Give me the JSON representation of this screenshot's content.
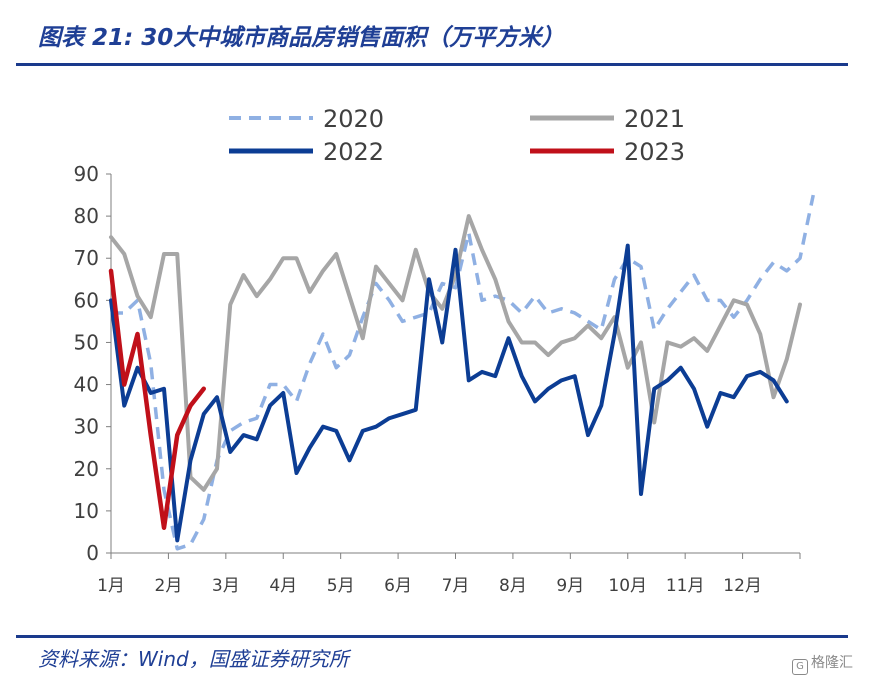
{
  "figure": {
    "title": "图表 21:  30大中城市商品房销售面积（万平方米）",
    "source": "资料来源：Wind，国盛证券研究所",
    "watermark": "格隆汇"
  },
  "colors": {
    "2020": "#8fb0e3",
    "2021": "#a6a6a6",
    "2022": "#0c3d94",
    "2023": "#c0101a",
    "title": "#1f3f95",
    "axis": "#7f7f7f"
  },
  "chart_data": {
    "type": "line",
    "title": "30大中城市商品房销售面积（万平方米）",
    "xlabel": "",
    "ylabel": "",
    "ylim": [
      0,
      90
    ],
    "yticks": [
      0,
      10,
      20,
      30,
      40,
      50,
      60,
      70,
      80,
      90
    ],
    "x_tick_labels": [
      "1月",
      "2月",
      "3月",
      "4月",
      "5月",
      "6月",
      "7月",
      "8月",
      "9月",
      "10月",
      "11月",
      "12月"
    ],
    "x_unit": "week of year",
    "xlim": [
      1,
      53
    ],
    "grid": false,
    "legend": "top",
    "series": [
      {
        "name": "2020",
        "style": "dashed",
        "values": [
          57,
          57,
          60,
          45,
          15,
          1,
          2,
          8,
          22,
          29,
          31,
          32,
          40,
          40,
          36,
          45,
          52,
          44,
          47,
          56,
          64,
          60,
          55,
          56,
          57,
          64,
          63,
          76,
          60,
          61,
          60,
          57,
          61,
          57,
          58,
          57,
          55,
          53,
          65,
          70,
          68,
          53,
          58,
          62,
          66,
          60,
          60,
          56,
          60,
          65,
          69,
          67,
          70,
          85
        ]
      },
      {
        "name": "2021",
        "style": "solid",
        "values": [
          75,
          71,
          61,
          56,
          71,
          71,
          18,
          15,
          20,
          59,
          66,
          61,
          65,
          70,
          70,
          62,
          67,
          71,
          61,
          51,
          68,
          64,
          60,
          72,
          62,
          58,
          66,
          80,
          72,
          65,
          55,
          50,
          50,
          47,
          50,
          51,
          54,
          51,
          56,
          44,
          50,
          31,
          50,
          49,
          51,
          48,
          54,
          60,
          59,
          52,
          37,
          46,
          59
        ]
      },
      {
        "name": "2022",
        "style": "solid",
        "values": [
          60,
          35,
          44,
          38,
          39,
          3,
          22,
          33,
          37,
          24,
          28,
          27,
          35,
          38,
          19,
          25,
          30,
          29,
          22,
          29,
          30,
          32,
          33,
          34,
          65,
          50,
          72,
          41,
          43,
          42,
          51,
          42,
          36,
          39,
          41,
          42,
          28,
          35,
          52,
          73,
          14,
          39,
          41,
          44,
          39,
          30,
          38,
          37,
          42,
          43,
          41,
          36
        ]
      },
      {
        "name": "2023",
        "style": "solid",
        "values": [
          67,
          40,
          52,
          28,
          6,
          28,
          35,
          39
        ]
      }
    ]
  }
}
